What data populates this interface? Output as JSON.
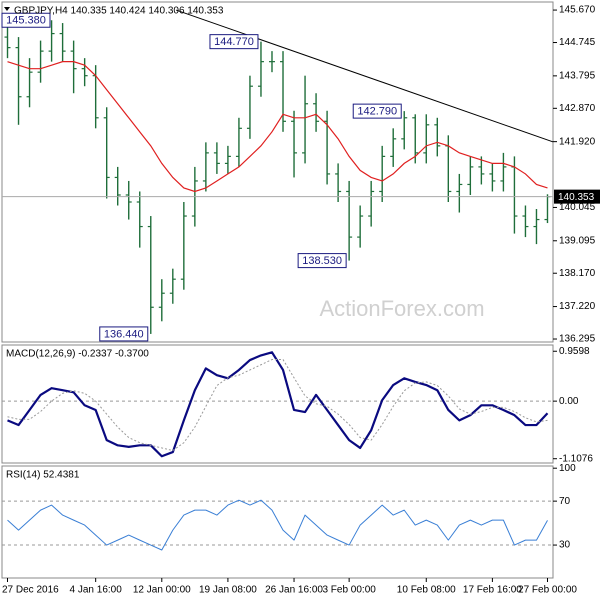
{
  "chart_data": [
    {
      "type": "ohlc",
      "title": "GBPJPY,H4  140.335 140.424 140.306 140.353",
      "watermark": "ActionForex.com",
      "open": [
        144.9,
        144.6,
        143.2,
        143.9,
        144.5,
        145.0,
        144.5,
        144.0,
        143.8,
        142.6,
        140.9,
        140.4,
        140.2,
        139.5,
        137.2,
        137.6,
        138.0,
        139.8,
        140.8,
        141.6,
        141.3,
        141.5,
        142.3,
        143.5,
        144.2,
        144.2,
        142.5,
        141.6,
        143.0,
        142.5,
        141.0,
        140.5,
        139.2,
        139.8,
        140.5,
        141.5,
        142.0,
        142.6,
        141.6,
        142.4,
        141.8,
        140.5,
        140.7,
        141.2,
        141.0,
        140.8,
        141.2,
        139.8,
        139.5,
        139.7
      ],
      "high": [
        145.2,
        144.9,
        144.3,
        144.8,
        145.38,
        145.3,
        144.8,
        144.3,
        144.1,
        142.9,
        141.2,
        140.8,
        140.5,
        139.8,
        138.0,
        138.3,
        140.2,
        141.2,
        141.9,
        141.9,
        141.8,
        142.6,
        143.8,
        144.77,
        144.5,
        144.5,
        142.8,
        143.8,
        143.3,
        142.8,
        141.3,
        140.8,
        140.1,
        140.8,
        141.8,
        142.3,
        142.79,
        142.7,
        142.7,
        142.6,
        142.1,
        141.0,
        141.5,
        141.5,
        141.3,
        141.6,
        141.5,
        140.1,
        140.0,
        140.42
      ],
      "low": [
        144.3,
        142.4,
        142.9,
        143.6,
        144.2,
        144.2,
        143.3,
        143.5,
        142.3,
        140.3,
        140.1,
        139.7,
        138.9,
        136.44,
        136.8,
        137.3,
        137.7,
        139.5,
        140.5,
        141.0,
        141.0,
        141.2,
        142.0,
        143.2,
        143.9,
        142.2,
        140.9,
        141.3,
        142.2,
        140.7,
        140.2,
        138.53,
        138.9,
        139.5,
        140.2,
        141.2,
        141.7,
        141.3,
        141.3,
        141.5,
        140.2,
        139.9,
        140.4,
        140.7,
        140.5,
        140.5,
        139.3,
        139.2,
        139.0,
        139.6
      ],
      "close": [
        144.6,
        143.2,
        143.9,
        144.5,
        145.0,
        144.5,
        144.0,
        143.8,
        142.6,
        140.9,
        140.4,
        140.2,
        139.5,
        137.2,
        137.6,
        138.0,
        139.8,
        140.8,
        141.6,
        141.3,
        141.5,
        142.3,
        143.5,
        144.2,
        144.2,
        142.5,
        141.6,
        143.0,
        142.5,
        141.0,
        140.5,
        139.2,
        139.8,
        140.5,
        141.5,
        142.0,
        142.6,
        141.6,
        142.4,
        141.8,
        140.5,
        140.7,
        141.2,
        141.0,
        140.8,
        141.2,
        139.8,
        139.5,
        139.7,
        140.353
      ],
      "color": "#1f6e3a",
      "moving_average": {
        "color": "#e02020",
        "values": [
          144.2,
          144.1,
          144.0,
          144.0,
          144.1,
          144.2,
          144.2,
          144.1,
          143.8,
          143.4,
          143.0,
          142.6,
          142.2,
          141.8,
          141.3,
          140.9,
          140.6,
          140.5,
          140.6,
          140.8,
          141.0,
          141.2,
          141.5,
          141.8,
          142.2,
          142.7,
          142.6,
          142.6,
          142.7,
          142.4,
          142.0,
          141.5,
          141.1,
          140.9,
          140.8,
          141.0,
          141.3,
          141.5,
          141.8,
          141.9,
          141.8,
          141.6,
          141.5,
          141.4,
          141.3,
          141.3,
          141.2,
          141.0,
          140.7,
          140.6
        ]
      },
      "trendline": {
        "x": [
          15.3,
          49.9
        ],
        "y": [
          145.67,
          141.87
        ],
        "color": "#000000"
      },
      "annotations": [
        {
          "index": 4,
          "value": 145.38,
          "label": "145.380"
        },
        {
          "index": 23,
          "value": 144.77,
          "label": "144.770"
        },
        {
          "index": 36,
          "value": 142.79,
          "label": "142.790"
        },
        {
          "index": 31,
          "value": 138.53,
          "label": "138.530"
        },
        {
          "index": 13,
          "value": 136.44,
          "label": "136.440"
        }
      ],
      "ylim": [
        136.21,
        145.9
      ],
      "yticks": [
        {
          "value": 145.67,
          "label": "145.670"
        },
        {
          "value": 144.745,
          "label": "144.745"
        },
        {
          "value": 143.795,
          "label": "143.795"
        },
        {
          "value": 142.87,
          "label": "142.870"
        },
        {
          "value": 141.92,
          "label": "141.920"
        },
        {
          "value": 140.045,
          "label": "140.045"
        },
        {
          "value": 139.095,
          "label": "139.095"
        },
        {
          "value": 138.17,
          "label": "138.170"
        },
        {
          "value": 137.22,
          "label": "137.220"
        },
        {
          "value": 136.295,
          "label": "136.295"
        }
      ]
    },
    {
      "type": "line",
      "title": "MACD(12,26,9) -0.2337 -0.3700",
      "series": [
        {
          "color": "#0a0a80",
          "width": 2.2,
          "values": [
            -0.37,
            -0.46,
            -0.17,
            0.12,
            0.25,
            0.21,
            0.17,
            -0.08,
            -0.17,
            -0.75,
            -0.85,
            -0.88,
            -0.85,
            -0.85,
            -1.06,
            -0.98,
            -0.37,
            0.21,
            0.63,
            0.5,
            0.44,
            0.6,
            0.79,
            0.88,
            0.94,
            0.6,
            -0.17,
            -0.21,
            0.12,
            -0.17,
            -0.46,
            -0.75,
            -0.9,
            -0.56,
            0.02,
            0.31,
            0.44,
            0.37,
            0.31,
            0.21,
            -0.17,
            -0.37,
            -0.27,
            -0.08,
            -0.08,
            -0.17,
            -0.27,
            -0.46,
            -0.46,
            -0.2337
          ]
        },
        {
          "color": "#999999",
          "width": 1,
          "dashed": true,
          "values": [
            -0.3,
            -0.35,
            -0.35,
            -0.2,
            0.0,
            0.15,
            0.2,
            0.15,
            0.0,
            -0.25,
            -0.5,
            -0.7,
            -0.8,
            -0.85,
            -0.9,
            -0.95,
            -0.8,
            -0.5,
            -0.1,
            0.3,
            0.45,
            0.5,
            0.6,
            0.7,
            0.8,
            0.8,
            0.45,
            0.1,
            -0.05,
            -0.1,
            -0.25,
            -0.45,
            -0.7,
            -0.75,
            -0.45,
            -0.1,
            0.2,
            0.35,
            0.37,
            0.3,
            0.1,
            -0.15,
            -0.25,
            -0.2,
            -0.12,
            -0.12,
            -0.2,
            -0.32,
            -0.4,
            -0.37
          ]
        }
      ],
      "levels": [
        0
      ],
      "ylim": [
        -1.19,
        1.08
      ],
      "yticks": [
        0.9598,
        {
          "value": 0,
          "label": "0.00"
        },
        -1.1076
      ]
    },
    {
      "type": "line",
      "title": "RSI(14) 52.4381",
      "categories": [
        "27 Dec 2016",
        null,
        null,
        null,
        null,
        null,
        null,
        null,
        "4 Jan 16:00",
        null,
        null,
        null,
        null,
        null,
        "12 Jan 00:00",
        null,
        null,
        null,
        null,
        null,
        "19 Jan 08:00",
        null,
        null,
        null,
        null,
        null,
        "26 Jan 16:00",
        null,
        null,
        null,
        null,
        "3 Feb 00:00",
        null,
        null,
        null,
        null,
        null,
        null,
        "10 Feb 08:00",
        null,
        null,
        null,
        null,
        null,
        "17 Feb 16:00",
        null,
        null,
        null,
        null,
        "27 Feb 00:00"
      ],
      "series": [
        {
          "color": "#3a7fd5",
          "width": 1,
          "values": [
            52.7,
            43.6,
            52.7,
            61.8,
            66.4,
            57.3,
            52.7,
            48.2,
            39.1,
            30,
            34.5,
            39.1,
            34.5,
            30,
            25.5,
            43.6,
            57.3,
            61.8,
            61.8,
            57.3,
            66.4,
            70.9,
            66.4,
            70.9,
            61.8,
            43.6,
            34.5,
            57.3,
            48.2,
            39.1,
            34.5,
            30,
            48.2,
            57.3,
            66.4,
            57.3,
            61.8,
            48.2,
            52.7,
            48.2,
            34.5,
            48.2,
            52.7,
            48.2,
            52.7,
            52.7,
            30,
            34.5,
            34.5,
            52.4381
          ]
        }
      ],
      "levels": [
        70,
        30
      ],
      "ylim": [
        0,
        102
      ],
      "yticks": [
        100,
        70,
        30
      ]
    }
  ]
}
